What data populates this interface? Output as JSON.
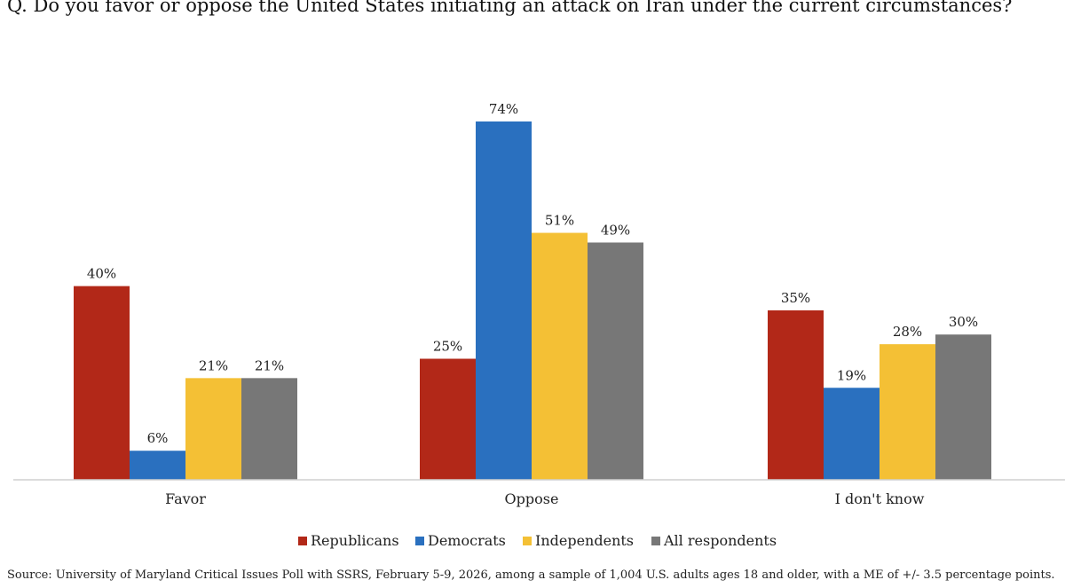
{
  "chart_data": {
    "type": "bar",
    "title": "Q. Do you favor or oppose the United States initiating an attack on Iran under the current circumstances?",
    "categories": [
      "Favor",
      "Oppose",
      "I don't know"
    ],
    "series": [
      {
        "name": "Republicans",
        "color": "#b22818",
        "values": [
          40,
          25,
          35
        ]
      },
      {
        "name": "Democrats",
        "color": "#2a70bf",
        "values": [
          6,
          74,
          19
        ]
      },
      {
        "name": "Independents",
        "color": "#f4c035",
        "values": [
          21,
          51,
          28
        ]
      },
      {
        "name": "All respondents",
        "color": "#777777",
        "values": [
          21,
          49,
          30
        ]
      }
    ],
    "value_suffix": "%",
    "ylim": [
      0,
      80
    ],
    "grid": false,
    "legend": "bottom",
    "source": "Source: University of Maryland Critical Issues Poll with SSRS, February 5-9, 2026, among a sample of 1,004 U.S. adults ages 18 and older, with a ME of +/- 3.5 percentage points."
  }
}
